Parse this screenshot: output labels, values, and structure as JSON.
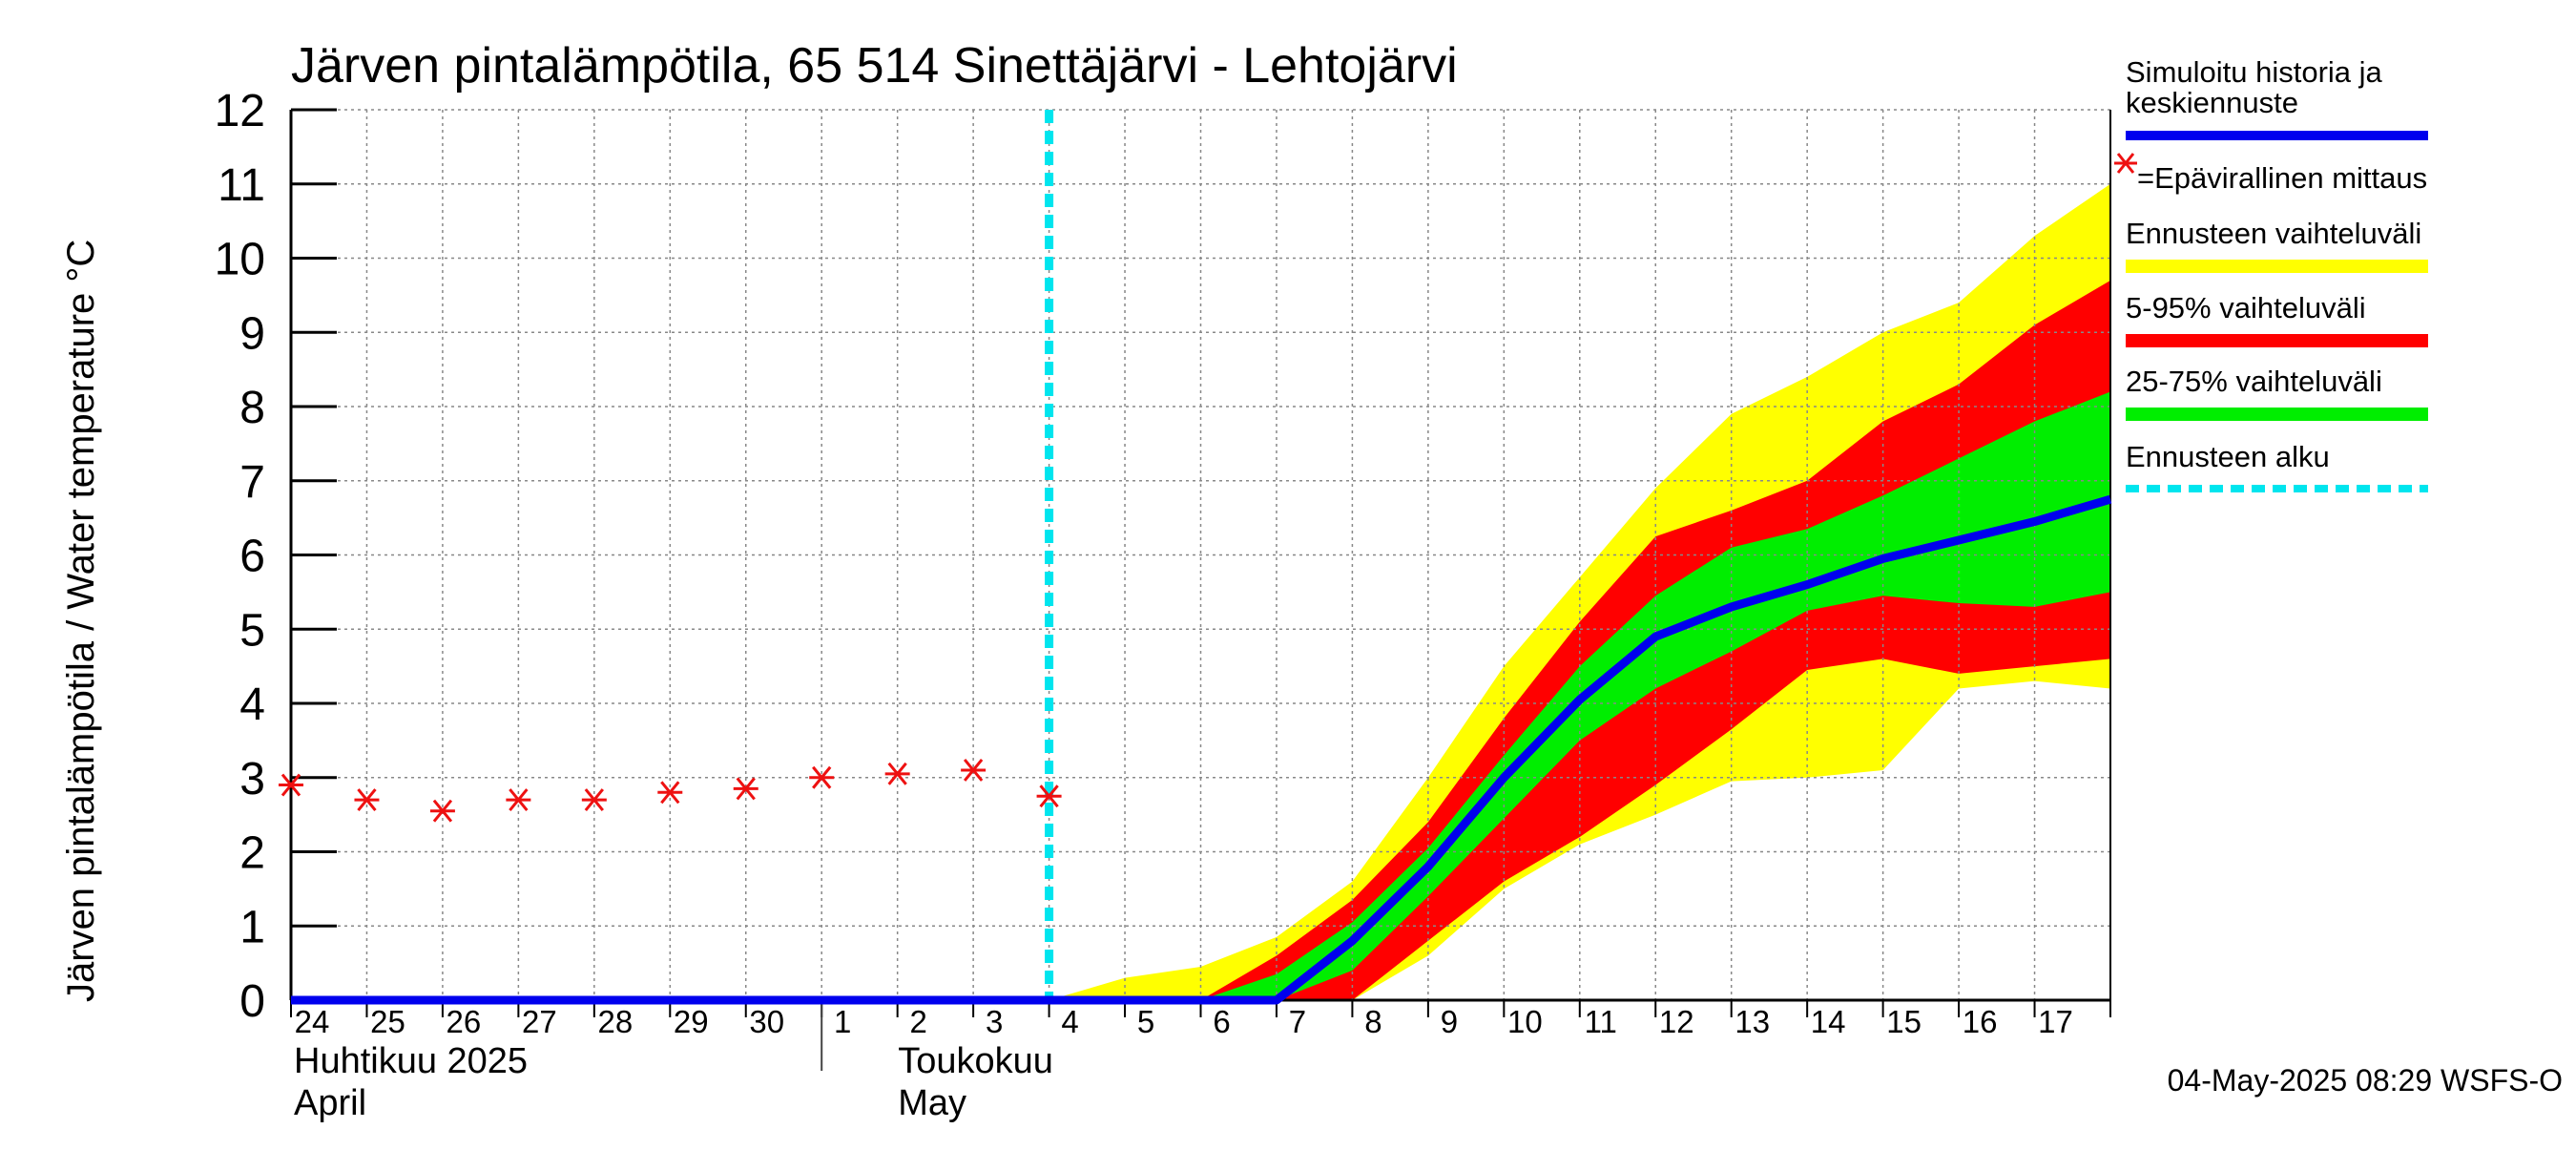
{
  "chart_data": {
    "type": "area",
    "title": "Järven pintalämpötila, 65 514 Sinettäjärvi - Lehtojärvi",
    "ylabel": "Järven pintalämpötila / Water temperature °C",
    "ylim": [
      0,
      12
    ],
    "y_ticks": [
      0,
      1,
      2,
      3,
      4,
      5,
      6,
      7,
      8,
      9,
      10,
      11,
      12
    ],
    "x_range": [
      "2025-04-24",
      "2025-05-18"
    ],
    "x_tick_labels": [
      "24",
      "25",
      "26",
      "27",
      "28",
      "29",
      "30",
      "1",
      "2",
      "3",
      "4",
      "5",
      "6",
      "7",
      "8",
      "9",
      "10",
      "11",
      "12",
      "13",
      "14",
      "15",
      "16",
      "17"
    ],
    "x_tick_dates": [
      "2025-04-24",
      "2025-04-25",
      "2025-04-26",
      "2025-04-27",
      "2025-04-28",
      "2025-04-29",
      "2025-04-30",
      "2025-05-01",
      "2025-05-02",
      "2025-05-03",
      "2025-05-04",
      "2025-05-05",
      "2025-05-06",
      "2025-05-07",
      "2025-05-08",
      "2025-05-09",
      "2025-05-10",
      "2025-05-11",
      "2025-05-12",
      "2025-05-13",
      "2025-05-14",
      "2025-05-15",
      "2025-05-16",
      "2025-05-17"
    ],
    "month_labels": [
      {
        "fi": "Huhtikuu  2025",
        "en": "April",
        "date": "2025-04-24"
      },
      {
        "fi": "Toukokuu",
        "en": "May",
        "date": "2025-05-01"
      }
    ],
    "month_separator_date": "2025-05-01",
    "grid": true,
    "forecast_start": "2025-05-04",
    "measurements": {
      "name": "=Epävirallinen mittaus",
      "x": [
        "2025-04-24",
        "2025-04-25",
        "2025-04-26",
        "2025-04-27",
        "2025-04-28",
        "2025-04-29",
        "2025-04-30",
        "2025-05-01",
        "2025-05-02",
        "2025-05-03",
        "2025-05-04"
      ],
      "y": [
        2.9,
        2.7,
        2.55,
        2.7,
        2.7,
        2.8,
        2.85,
        3.0,
        3.05,
        3.1,
        2.75
      ]
    },
    "simulated": {
      "name": "Simuloitu historia ja keskiennuste",
      "x": [
        "2025-04-24",
        "2025-05-07",
        "2025-05-08",
        "2025-05-09",
        "2025-05-10",
        "2025-05-11",
        "2025-05-12",
        "2025-05-13",
        "2025-05-14",
        "2025-05-15",
        "2025-05-16",
        "2025-05-17",
        "2025-05-18"
      ],
      "y": [
        0,
        0,
        0.8,
        1.8,
        3.0,
        4.05,
        4.9,
        5.3,
        5.6,
        5.95,
        6.2,
        6.45,
        6.75
      ]
    },
    "bands": [
      {
        "name": "Ennusteen vaihteluväli",
        "x": [
          "2025-05-04",
          "2025-05-05",
          "2025-05-06",
          "2025-05-07",
          "2025-05-08",
          "2025-05-09",
          "2025-05-10",
          "2025-05-11",
          "2025-05-12",
          "2025-05-13",
          "2025-05-14",
          "2025-05-15",
          "2025-05-16",
          "2025-05-17",
          "2025-05-18"
        ],
        "upper": [
          0,
          0.3,
          0.45,
          0.85,
          1.6,
          3.0,
          4.5,
          5.7,
          6.9,
          7.9,
          8.4,
          9.0,
          9.4,
          10.3,
          11.0
        ],
        "lower": [
          0,
          0,
          0,
          0,
          0,
          0.6,
          1.5,
          2.1,
          2.5,
          2.95,
          3.0,
          3.1,
          4.2,
          4.3,
          4.2
        ]
      },
      {
        "name": "5-95% vaihteluväli",
        "x": [
          "2025-05-06",
          "2025-05-07",
          "2025-05-08",
          "2025-05-09",
          "2025-05-10",
          "2025-05-11",
          "2025-05-12",
          "2025-05-13",
          "2025-05-14",
          "2025-05-15",
          "2025-05-16",
          "2025-05-17",
          "2025-05-18"
        ],
        "upper": [
          0,
          0.6,
          1.35,
          2.4,
          3.8,
          5.1,
          6.25,
          6.6,
          7.0,
          7.8,
          8.3,
          9.1,
          9.7
        ],
        "lower": [
          0,
          0,
          0,
          0.8,
          1.6,
          2.2,
          2.9,
          3.65,
          4.45,
          4.6,
          4.4,
          4.5,
          4.6
        ]
      },
      {
        "name": "25-75% vaihteluväli",
        "x": [
          "2025-05-06",
          "2025-05-07",
          "2025-05-08",
          "2025-05-09",
          "2025-05-10",
          "2025-05-11",
          "2025-05-12",
          "2025-05-13",
          "2025-05-14",
          "2025-05-15",
          "2025-05-16",
          "2025-05-17",
          "2025-05-18"
        ],
        "upper": [
          0,
          0.35,
          1.05,
          2.05,
          3.3,
          4.5,
          5.45,
          6.1,
          6.35,
          6.8,
          7.3,
          7.8,
          8.2
        ],
        "lower": [
          0,
          0,
          0.4,
          1.4,
          2.45,
          3.5,
          4.2,
          4.7,
          5.25,
          5.45,
          5.35,
          5.3,
          5.5
        ]
      }
    ],
    "legend": {
      "placement": "right",
      "simulated_line1": "Simuloitu historia ja",
      "simulated_line2": "keskiennuste",
      "measurement": "=Epävirallinen mittaus",
      "forecast_range": "Ennusteen vaihteluväli",
      "p5_95": "5-95% vaihteluväli",
      "p25_75": "25-75% vaihteluväli",
      "forecast_start": "Ennusteen alku"
    },
    "colors": {
      "simulated": "#0000ee",
      "measurement": "#ee1111",
      "forecast_range": "#ffff00",
      "p5_95": "#ff0000",
      "p25_75": "#00ee00",
      "forecast_start": "#00e5ee",
      "grid": "#888888"
    },
    "footer": "04-May-2025 08:29 WSFS-O"
  }
}
